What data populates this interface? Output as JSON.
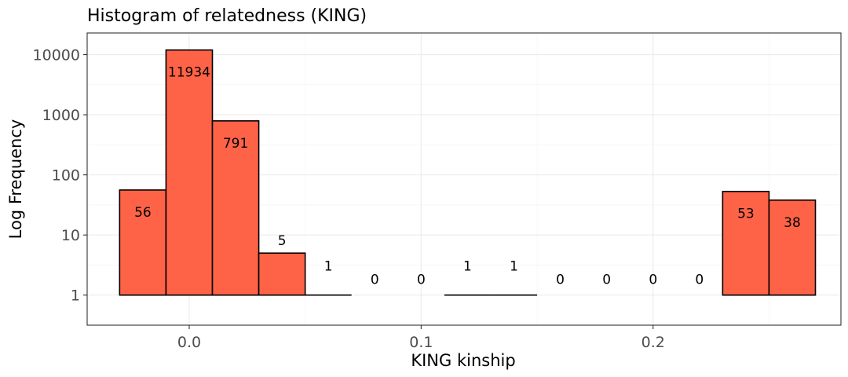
{
  "chart_data": {
    "type": "bar",
    "title": "Histogram of relatedness (KING)",
    "xlabel": "KING kinship",
    "ylabel": "Log Frequency",
    "y_scale": "log10",
    "bin_width": 0.02,
    "bin_centers": [
      0.0,
      0.02,
      0.04,
      0.06,
      0.08,
      0.1,
      0.12,
      0.14,
      0.16,
      0.18,
      0.2,
      0.22,
      0.24,
      0.26
    ],
    "values": [
      11934,
      791,
      5,
      1,
      0,
      0,
      1,
      1,
      0,
      0,
      0,
      0,
      53,
      38
    ],
    "extra_bins": [
      {
        "center": -0.02,
        "value": 56
      }
    ],
    "xlim": [
      -0.044,
      0.281
    ],
    "ylim_log10": [
      -0.5,
      4.36
    ],
    "x_ticks": [
      {
        "value": 0.0,
        "label": "0.0"
      },
      {
        "value": 0.1,
        "label": "0.1"
      },
      {
        "value": 0.2,
        "label": "0.2"
      }
    ],
    "y_ticks": [
      {
        "value": 1,
        "label": "1"
      },
      {
        "value": 10,
        "label": "10"
      },
      {
        "value": 100,
        "label": "100"
      },
      {
        "value": 1000,
        "label": "1000"
      },
      {
        "value": 10000,
        "label": "10000"
      }
    ],
    "bar_color": "#FF6347",
    "grid": true,
    "legend": "none"
  }
}
